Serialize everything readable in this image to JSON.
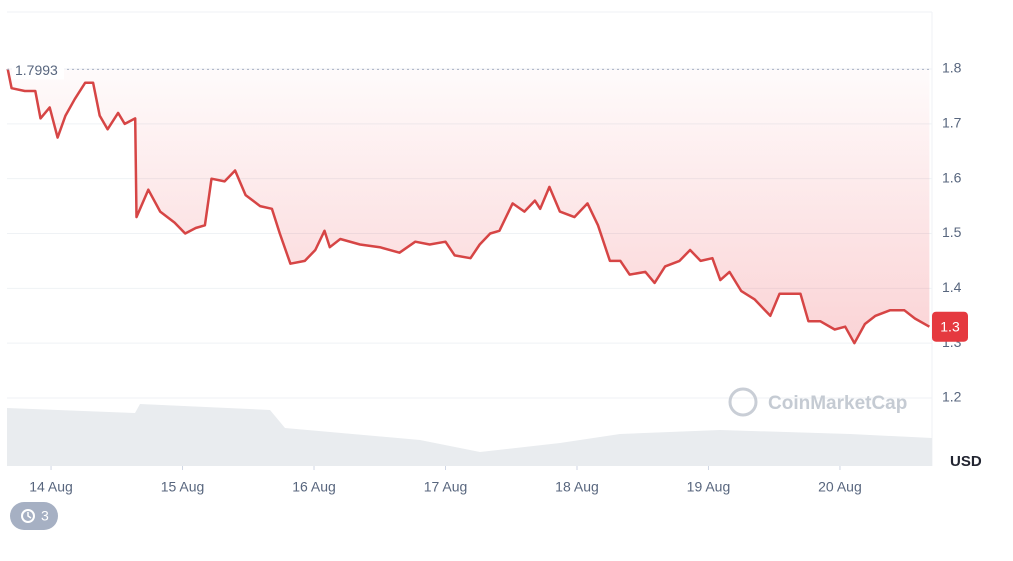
{
  "chart_data": {
    "type": "line",
    "x": [
      13.67,
      13.7,
      13.8,
      13.88,
      13.92,
      13.99,
      14.05,
      14.11,
      14.18,
      14.26,
      14.32,
      14.37,
      14.43,
      14.51,
      14.56,
      14.64,
      14.65,
      14.74,
      14.83,
      14.94,
      15.02,
      15.1,
      15.17,
      15.22,
      15.32,
      15.4,
      15.48,
      15.59,
      15.68,
      15.74,
      15.82,
      15.93,
      16.01,
      16.08,
      16.12,
      16.2,
      16.35,
      16.5,
      16.65,
      16.77,
      16.88,
      17.0,
      17.07,
      17.19,
      17.26,
      17.34,
      17.41,
      17.51,
      17.6,
      17.68,
      17.72,
      17.79,
      17.87,
      17.98,
      18.08,
      18.16,
      18.25,
      18.33,
      18.4,
      18.52,
      18.59,
      18.67,
      18.78,
      18.86,
      18.94,
      19.03,
      19.09,
      19.16,
      19.25,
      19.35,
      19.47,
      19.54,
      19.7,
      19.76,
      19.85,
      19.96,
      20.04,
      20.11,
      20.19,
      20.27,
      20.38,
      20.49,
      20.57,
      20.68
    ],
    "series": [
      {
        "color": "#d64545",
        "values": [
          1.8,
          1.765,
          1.76,
          1.76,
          1.71,
          1.73,
          1.675,
          1.715,
          1.745,
          1.775,
          1.775,
          1.715,
          1.69,
          1.72,
          1.7,
          1.71,
          1.53,
          1.58,
          1.54,
          1.52,
          1.5,
          1.51,
          1.515,
          1.6,
          1.595,
          1.615,
          1.57,
          1.55,
          1.545,
          1.5,
          1.445,
          1.45,
          1.47,
          1.505,
          1.475,
          1.49,
          1.48,
          1.475,
          1.465,
          1.485,
          1.48,
          1.485,
          1.46,
          1.455,
          1.48,
          1.5,
          1.505,
          1.555,
          1.54,
          1.56,
          1.545,
          1.585,
          1.54,
          1.53,
          1.555,
          1.515,
          1.45,
          1.45,
          1.425,
          1.43,
          1.41,
          1.44,
          1.45,
          1.47,
          1.45,
          1.455,
          1.415,
          1.43,
          1.395,
          1.38,
          1.35,
          1.39,
          1.39,
          1.34,
          1.34,
          1.325,
          1.33,
          1.3,
          1.335,
          1.35,
          1.36,
          1.36,
          1.345,
          1.33
        ]
      }
    ],
    "xlim": [
      13.665,
      20.7
    ],
    "xticks": [
      {
        "value": 14,
        "label": "14 Aug"
      },
      {
        "value": 15,
        "label": "15 Aug"
      },
      {
        "value": 16,
        "label": "16 Aug"
      },
      {
        "value": 17,
        "label": "17 Aug"
      },
      {
        "value": 18,
        "label": "18 Aug"
      },
      {
        "value": 19,
        "label": "19 Aug"
      },
      {
        "value": 20,
        "label": "20 Aug"
      }
    ],
    "ylim": [
      1.076,
      1.904
    ],
    "yticks": [
      1.2,
      1.3,
      1.4,
      1.5,
      1.6,
      1.7,
      1.8
    ],
    "grid": true,
    "y_unit": "USD",
    "reference_line": 1.7993,
    "last_price": {
      "value": 1.33,
      "label": "1.3"
    },
    "watermark": "CoinMarketCap"
  },
  "history_badge": {
    "count": 3
  }
}
